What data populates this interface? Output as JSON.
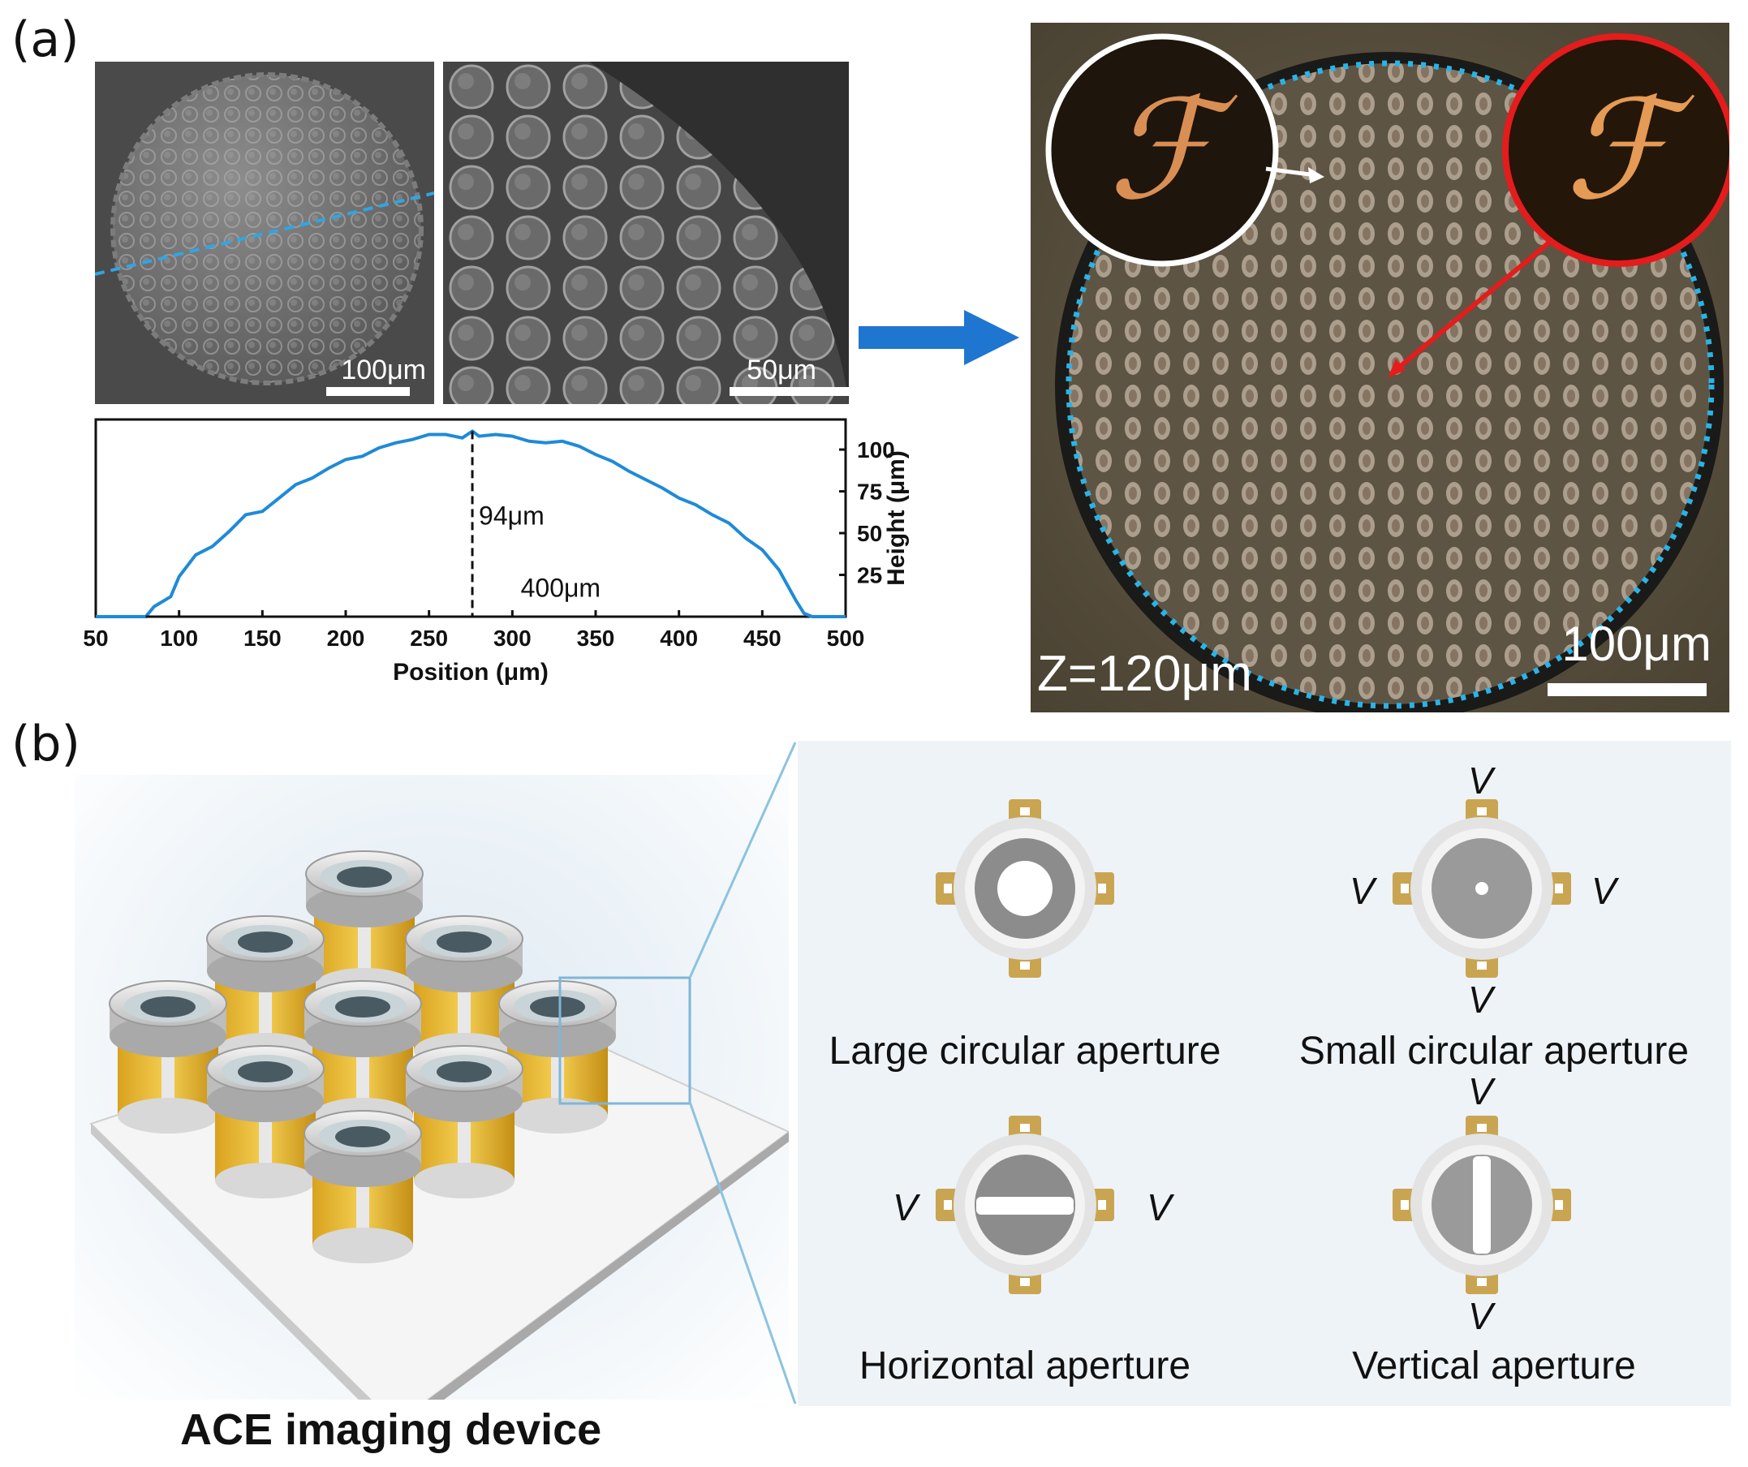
{
  "panel_a": {
    "label": "(a)",
    "sem_left": {
      "scale": "100μm"
    },
    "sem_right": {
      "scale": "50μm"
    },
    "micrograph": {
      "z_label": "Z=120μm",
      "scale": "100μm"
    }
  },
  "panel_b": {
    "label": "(b)",
    "device_title": "ACE imaging device",
    "apertures": [
      {
        "name": "Large circular aperture",
        "voltage": ""
      },
      {
        "name": "Small circular aperture",
        "voltage": "V"
      },
      {
        "name": "Horizontal aperture",
        "voltage": "V"
      },
      {
        "name": "Vertical aperture",
        "voltage": "V"
      }
    ],
    "colors": {
      "electrode": "#c9a552",
      "housing": "#e6e6e6",
      "background": "#eaf1f6"
    }
  },
  "chart_data": {
    "type": "line",
    "xlabel": "Position (μm)",
    "ylabel": "Height (μm)",
    "xlim": [
      50,
      500
    ],
    "ylim": [
      0,
      118
    ],
    "x_ticks": [
      "50",
      "100",
      "150",
      "200",
      "250",
      "300",
      "350",
      "400",
      "450",
      "500"
    ],
    "y_ticks": [
      "25",
      "50",
      "75",
      "100"
    ],
    "annotations": [
      "94μm",
      "400μm"
    ],
    "series": [
      {
        "color": "#1f8ad8",
        "x": [
          50,
          80,
          85,
          95,
          100,
          110,
          120,
          130,
          140,
          150,
          160,
          170,
          180,
          190,
          200,
          210,
          220,
          230,
          240,
          250,
          260,
          270,
          276,
          280,
          290,
          300,
          310,
          320,
          330,
          340,
          350,
          360,
          370,
          380,
          390,
          400,
          410,
          420,
          430,
          440,
          450,
          460,
          470,
          475,
          480,
          500
        ],
        "y": [
          0,
          0,
          6,
          12,
          24,
          37,
          42,
          51,
          61,
          63,
          71,
          79,
          83,
          89,
          94,
          96,
          101,
          104,
          106,
          109,
          109,
          107,
          111,
          108,
          109,
          108,
          105,
          104,
          105,
          102,
          97,
          93,
          87,
          82,
          77,
          71,
          67,
          61,
          56,
          47,
          40,
          28,
          10,
          2,
          0,
          0
        ]
      }
    ]
  }
}
